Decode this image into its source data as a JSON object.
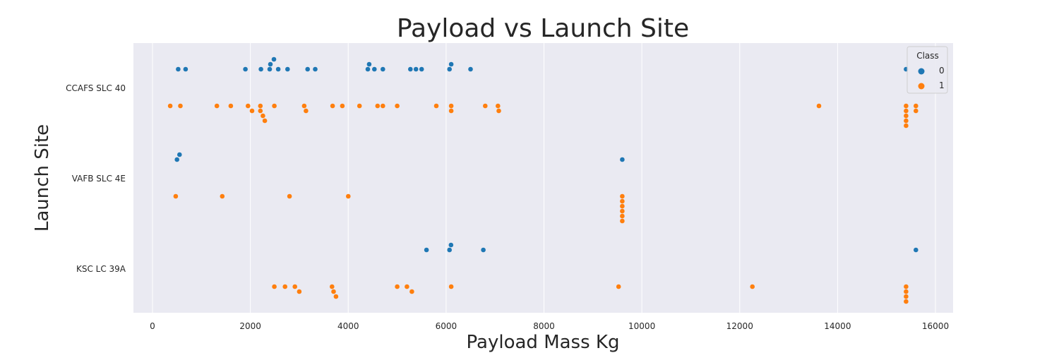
{
  "chart_data": {
    "type": "scatter",
    "title": "Payload vs Launch Site",
    "xlabel": "Payload Mass Kg",
    "ylabel": "Launch Site",
    "xlim": [
      -400,
      16400
    ],
    "x_ticks": [
      0,
      2000,
      4000,
      6000,
      8000,
      10000,
      12000,
      14000,
      16000
    ],
    "categories": [
      "CCAFS SLC 40",
      "VAFB SLC 4E",
      "KSC LC 39A"
    ],
    "grid": true,
    "legend": {
      "title": "Class",
      "position": "top-right"
    },
    "series": [
      {
        "name": "0",
        "color": "#1f77b4",
        "points": [
          {
            "site": "CCAFS SLC 40",
            "x": 525
          },
          {
            "site": "CCAFS SLC 40",
            "x": 677
          },
          {
            "site": "CCAFS SLC 40",
            "x": 1898
          },
          {
            "site": "CCAFS SLC 40",
            "x": 2216
          },
          {
            "site": "CCAFS SLC 40",
            "x": 2395
          },
          {
            "site": "CCAFS SLC 40",
            "x": 2482
          },
          {
            "site": "CCAFS SLC 40",
            "x": 2410
          },
          {
            "site": "CCAFS SLC 40",
            "x": 2570
          },
          {
            "site": "CCAFS SLC 40",
            "x": 2760
          },
          {
            "site": "CCAFS SLC 40",
            "x": 3170
          },
          {
            "site": "CCAFS SLC 40",
            "x": 3325
          },
          {
            "site": "CCAFS SLC 40",
            "x": 4400
          },
          {
            "site": "CCAFS SLC 40",
            "x": 4428
          },
          {
            "site": "CCAFS SLC 40",
            "x": 4535
          },
          {
            "site": "CCAFS SLC 40",
            "x": 4707
          },
          {
            "site": "CCAFS SLC 40",
            "x": 5271
          },
          {
            "site": "CCAFS SLC 40",
            "x": 5384
          },
          {
            "site": "CCAFS SLC 40",
            "x": 5500
          },
          {
            "site": "CCAFS SLC 40",
            "x": 6070
          },
          {
            "site": "CCAFS SLC 40",
            "x": 6104
          },
          {
            "site": "CCAFS SLC 40",
            "x": 6500
          },
          {
            "site": "CCAFS SLC 40",
            "x": 15400
          },
          {
            "site": "VAFB SLC 4E",
            "x": 500
          },
          {
            "site": "VAFB SLC 4E",
            "x": 553
          },
          {
            "site": "VAFB SLC 4E",
            "x": 9600
          },
          {
            "site": "KSC LC 39A",
            "x": 5600
          },
          {
            "site": "KSC LC 39A",
            "x": 6070
          },
          {
            "site": "KSC LC 39A",
            "x": 6100
          },
          {
            "site": "KSC LC 39A",
            "x": 6761
          },
          {
            "site": "KSC LC 39A",
            "x": 15600
          }
        ]
      },
      {
        "name": "1",
        "color": "#ff7f0e",
        "points": [
          {
            "site": "CCAFS SLC 40",
            "x": 362
          },
          {
            "site": "CCAFS SLC 40",
            "x": 570
          },
          {
            "site": "CCAFS SLC 40",
            "x": 1316
          },
          {
            "site": "CCAFS SLC 40",
            "x": 1600
          },
          {
            "site": "CCAFS SLC 40",
            "x": 1952
          },
          {
            "site": "CCAFS SLC 40",
            "x": 2034
          },
          {
            "site": "CCAFS SLC 40",
            "x": 2205
          },
          {
            "site": "CCAFS SLC 40",
            "x": 2257
          },
          {
            "site": "CCAFS SLC 40",
            "x": 2205
          },
          {
            "site": "CCAFS SLC 40",
            "x": 2296
          },
          {
            "site": "CCAFS SLC 40",
            "x": 2490
          },
          {
            "site": "CCAFS SLC 40",
            "x": 3100
          },
          {
            "site": "CCAFS SLC 40",
            "x": 3136
          },
          {
            "site": "CCAFS SLC 40",
            "x": 3681
          },
          {
            "site": "CCAFS SLC 40",
            "x": 3880
          },
          {
            "site": "CCAFS SLC 40",
            "x": 4230
          },
          {
            "site": "CCAFS SLC 40",
            "x": 4600
          },
          {
            "site": "CCAFS SLC 40",
            "x": 4707
          },
          {
            "site": "CCAFS SLC 40",
            "x": 5000
          },
          {
            "site": "CCAFS SLC 40",
            "x": 5800
          },
          {
            "site": "CCAFS SLC 40",
            "x": 6104
          },
          {
            "site": "CCAFS SLC 40",
            "x": 6104
          },
          {
            "site": "CCAFS SLC 40",
            "x": 6800
          },
          {
            "site": "CCAFS SLC 40",
            "x": 7060
          },
          {
            "site": "CCAFS SLC 40",
            "x": 7076
          },
          {
            "site": "CCAFS SLC 40",
            "x": 13620
          },
          {
            "site": "CCAFS SLC 40",
            "x": 15400
          },
          {
            "site": "CCAFS SLC 40",
            "x": 15400
          },
          {
            "site": "CCAFS SLC 40",
            "x": 15400
          },
          {
            "site": "CCAFS SLC 40",
            "x": 15400
          },
          {
            "site": "CCAFS SLC 40",
            "x": 15400
          },
          {
            "site": "CCAFS SLC 40",
            "x": 15600
          },
          {
            "site": "CCAFS SLC 40",
            "x": 15600
          },
          {
            "site": "VAFB SLC 4E",
            "x": 475
          },
          {
            "site": "VAFB SLC 4E",
            "x": 1425
          },
          {
            "site": "VAFB SLC 4E",
            "x": 2800
          },
          {
            "site": "VAFB SLC 4E",
            "x": 4000
          },
          {
            "site": "VAFB SLC 4E",
            "x": 9600
          },
          {
            "site": "VAFB SLC 4E",
            "x": 9600
          },
          {
            "site": "VAFB SLC 4E",
            "x": 9600
          },
          {
            "site": "VAFB SLC 4E",
            "x": 9600
          },
          {
            "site": "VAFB SLC 4E",
            "x": 9600
          },
          {
            "site": "VAFB SLC 4E",
            "x": 9600
          },
          {
            "site": "KSC LC 39A",
            "x": 2490
          },
          {
            "site": "KSC LC 39A",
            "x": 2708
          },
          {
            "site": "KSC LC 39A",
            "x": 2910
          },
          {
            "site": "KSC LC 39A",
            "x": 3000
          },
          {
            "site": "KSC LC 39A",
            "x": 3669
          },
          {
            "site": "KSC LC 39A",
            "x": 3700
          },
          {
            "site": "KSC LC 39A",
            "x": 3750
          },
          {
            "site": "KSC LC 39A",
            "x": 5000
          },
          {
            "site": "KSC LC 39A",
            "x": 5200
          },
          {
            "site": "KSC LC 39A",
            "x": 5300
          },
          {
            "site": "KSC LC 39A",
            "x": 6104
          },
          {
            "site": "KSC LC 39A",
            "x": 9525
          },
          {
            "site": "KSC LC 39A",
            "x": 12259
          },
          {
            "site": "KSC LC 39A",
            "x": 15400
          },
          {
            "site": "KSC LC 39A",
            "x": 15400
          },
          {
            "site": "KSC LC 39A",
            "x": 15400
          },
          {
            "site": "KSC LC 39A",
            "x": 15400
          }
        ]
      }
    ]
  }
}
